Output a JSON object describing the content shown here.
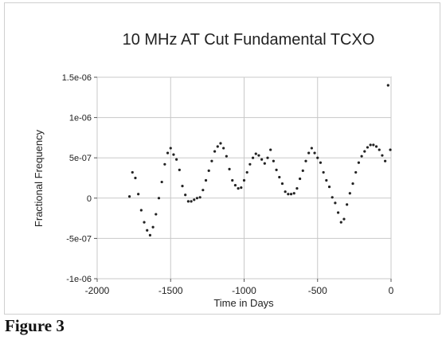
{
  "figure": {
    "caption": "Figure 3"
  },
  "chart_data": {
    "type": "scatter",
    "title": "10 MHz AT Cut Fundamental TCXO",
    "xlabel": "Time in Days",
    "ylabel": "Fractional Frequency",
    "xlim": [
      -2000,
      0
    ],
    "ylim": [
      -1e-06,
      1.5e-06
    ],
    "x_ticks": [
      -2000,
      -1500,
      -1000,
      -500,
      0
    ],
    "x_tick_labels": [
      "-2000",
      "-1500",
      "-1000",
      "-500",
      "0"
    ],
    "y_ticks": [
      -1e-06,
      -5e-07,
      0,
      5e-07,
      1e-06,
      1.5e-06
    ],
    "y_tick_labels": [
      "-1e-06",
      "-5e-07",
      "0",
      "5e-07",
      "1e-06",
      "1.5e-06"
    ],
    "grid": true,
    "legend": "none",
    "marker_color": "#222222",
    "series": [
      {
        "x": [
          -1780,
          -1760,
          -1740,
          -1720,
          -1700,
          -1680,
          -1660,
          -1640,
          -1620,
          -1600,
          -1580,
          -1560,
          -1540,
          -1520,
          -1500,
          -1480,
          -1460,
          -1440,
          -1420,
          -1400,
          -1380,
          -1360,
          -1340,
          -1320,
          -1300,
          -1280,
          -1260,
          -1240,
          -1220,
          -1200,
          -1180,
          -1160,
          -1140,
          -1120,
          -1100,
          -1080,
          -1060,
          -1040,
          -1020,
          -1000,
          -980,
          -960,
          -940,
          -920,
          -900,
          -880,
          -860,
          -840,
          -820,
          -800,
          -780,
          -760,
          -740,
          -720,
          -700,
          -680,
          -660,
          -640,
          -620,
          -600,
          -580,
          -560,
          -540,
          -520,
          -500,
          -480,
          -460,
          -440,
          -420,
          -400,
          -380,
          -360,
          -340,
          -320,
          -300,
          -280,
          -260,
          -240,
          -220,
          -200,
          -180,
          -160,
          -140,
          -120,
          -100,
          -80,
          -60,
          -40,
          -20,
          -5
        ],
        "y": [
          2e-08,
          3.2e-07,
          2.5e-07,
          5e-08,
          -1.5e-07,
          -3e-07,
          -4e-07,
          -4.6e-07,
          -3.6e-07,
          -2e-07,
          0,
          2e-07,
          4.2e-07,
          5.6e-07,
          6.2e-07,
          5.4e-07,
          4.8e-07,
          3.5e-07,
          1.5e-07,
          4e-08,
          -4e-08,
          -4e-08,
          -2e-08,
          0,
          1e-08,
          1e-07,
          2.2e-07,
          3.4e-07,
          4.6e-07,
          5.8e-07,
          6.4e-07,
          6.8e-07,
          6.2e-07,
          5.2e-07,
          3.6e-07,
          2.2e-07,
          1.6e-07,
          1.2e-07,
          1.3e-07,
          2.2e-07,
          3.2e-07,
          4.2e-07,
          5e-07,
          5.5e-07,
          5.3e-07,
          4.8e-07,
          4.3e-07,
          5e-07,
          6e-07,
          4.6e-07,
          3.5e-07,
          2.6e-07,
          1.8e-07,
          8e-08,
          5e-08,
          5e-08,
          6e-08,
          1.2e-07,
          2.4e-07,
          3.4e-07,
          4.6e-07,
          5.6e-07,
          6.2e-07,
          5.6e-07,
          5e-07,
          4.4e-07,
          3.2e-07,
          2.2e-07,
          1.4e-07,
          1e-08,
          -6e-08,
          -1.8e-07,
          -3e-07,
          -2.6e-07,
          -8e-08,
          6e-08,
          1.8e-07,
          3.2e-07,
          4.4e-07,
          5.2e-07,
          5.8e-07,
          6.3e-07,
          6.6e-07,
          6.6e-07,
          6.4e-07,
          6e-07,
          5.3e-07,
          4.6e-07,
          1.4e-06,
          6e-07
        ]
      }
    ]
  }
}
